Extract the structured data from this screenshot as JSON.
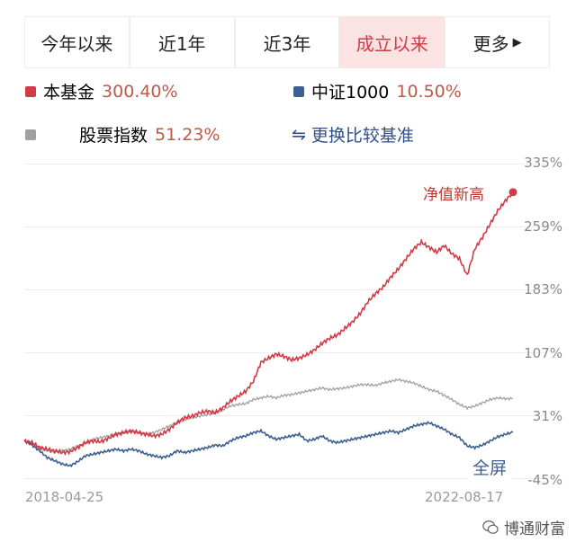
{
  "tabs": [
    {
      "label": "今年以来",
      "active": false
    },
    {
      "label": "近1年",
      "active": false
    },
    {
      "label": "近3年",
      "active": false
    },
    {
      "label": "成立以来",
      "active": true
    },
    {
      "label": "更多",
      "active": false
    }
  ],
  "legend": {
    "fund": {
      "name": "本基金",
      "value": "300.40%",
      "color": "#d23a45"
    },
    "csi1000": {
      "name": "中证1000",
      "value": "10.50%",
      "color": "#3e5f92"
    },
    "stock_index": {
      "name": "股票指数",
      "value": "51.23%",
      "color": "#a0a0a0"
    },
    "change_benchmark": "更换比较基准",
    "swap_icon": "swap-icon"
  },
  "annotation": "净值新高",
  "fullscreen": "全屏",
  "watermark": "博通财富",
  "chart_data": {
    "type": "line",
    "y_ticks": [
      "335%",
      "259%",
      "183%",
      "107%",
      "31%",
      "-45%"
    ],
    "ylim": [
      -45,
      335
    ],
    "x_start": "2018-04-25",
    "x_end": "2022-08-17",
    "series": [
      {
        "name": "本基金",
        "color": "#d23a45",
        "values": [
          0,
          -2,
          -8,
          -10,
          -12,
          -14,
          -13,
          -8,
          -2,
          0,
          -1,
          3,
          8,
          10,
          12,
          10,
          8,
          6,
          8,
          14,
          22,
          28,
          30,
          34,
          36,
          34,
          40,
          48,
          54,
          60,
          72,
          95,
          100,
          105,
          102,
          98,
          100,
          104,
          110,
          118,
          124,
          128,
          136,
          144,
          154,
          168,
          178,
          186,
          198,
          208,
          220,
          232,
          240,
          234,
          228,
          236,
          226,
          220,
          200,
          232,
          246,
          262,
          278,
          290,
          300.4
        ]
      },
      {
        "name": "中证1000",
        "color": "#3e5f92",
        "values": [
          0,
          -5,
          -12,
          -20,
          -24,
          -28,
          -30,
          -25,
          -18,
          -16,
          -14,
          -12,
          -10,
          -12,
          -10,
          -12,
          -16,
          -18,
          -20,
          -18,
          -12,
          -14,
          -12,
          -10,
          -8,
          -5,
          -6,
          0,
          4,
          6,
          10,
          12,
          6,
          2,
          4,
          6,
          8,
          0,
          2,
          6,
          0,
          -2,
          0,
          2,
          4,
          6,
          8,
          10,
          12,
          10,
          14,
          18,
          20,
          22,
          18,
          14,
          8,
          4,
          -6,
          -8,
          -5,
          0,
          5,
          8,
          10.5
        ]
      },
      {
        "name": "股票指数",
        "color": "#a0a0a0",
        "values": [
          0,
          -3,
          -8,
          -12,
          -13,
          -12,
          -10,
          -6,
          -3,
          2,
          4,
          6,
          8,
          10,
          12,
          10,
          8,
          10,
          14,
          18,
          22,
          26,
          28,
          30,
          32,
          34,
          38,
          42,
          44,
          45,
          50,
          52,
          54,
          52,
          55,
          56,
          58,
          60,
          62,
          64,
          62,
          63,
          64,
          66,
          68,
          68,
          67,
          70,
          72,
          74,
          72,
          70,
          66,
          62,
          60,
          55,
          50,
          44,
          40,
          42,
          46,
          50,
          52,
          51,
          51.23
        ]
      }
    ]
  }
}
